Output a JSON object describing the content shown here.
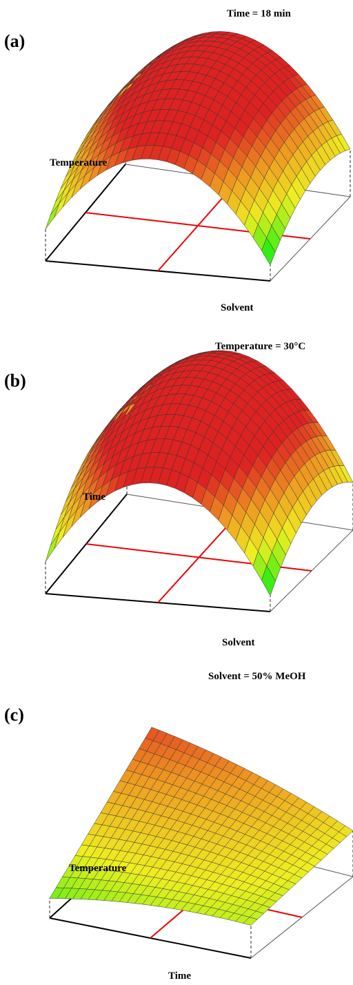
{
  "chart_data": [
    {
      "type": "surface",
      "panel_label": "(a)",
      "condition": "Time = 18 min",
      "axis_labels": [
        "Temperature",
        "Solvent"
      ],
      "surface": {
        "rows": 16,
        "cols": 26,
        "z": {
          "corners": {
            "temp_low_solvent_low": 0.2,
            "temp_high_solvent_low": 0.45,
            "temp_high_solvent_high": 0.3,
            "temp_low_solvent_high": 0.1
          },
          "curvature_temp": 0.15,
          "curvature_solvent": 0.55
        },
        "color_value_range": [
          0.15,
          0.75
        ]
      },
      "floor_reference_lines": "red",
      "colormap": [
        "#22ee11",
        "#eeee22",
        "#ee9922",
        "#dd2222"
      ]
    },
    {
      "type": "surface",
      "panel_label": "(b)",
      "condition": "Temperature = 30°C",
      "axis_labels": [
        "Time",
        "Solvent"
      ],
      "surface": {
        "rows": 16,
        "cols": 26,
        "z": {
          "corners": {
            "time_low_solvent_low": 0.2,
            "time_high_solvent_low": 0.5,
            "time_high_solvent_high": 0.3,
            "time_low_solvent_high": 0.1
          },
          "curvature_time": 0.2,
          "curvature_solvent": 0.6
        },
        "color_value_range": [
          0.15,
          0.75
        ]
      },
      "floor_reference_lines": "red",
      "colormap": [
        "#22ee11",
        "#eeee22",
        "#ee9922",
        "#dd2222"
      ]
    },
    {
      "type": "surface",
      "panel_label": "(c)",
      "condition": "Solvent = 50% MeOH",
      "axis_labels": [
        "Temperature",
        "Time"
      ],
      "surface": {
        "rows": 16,
        "cols": 26,
        "z": {
          "corners": {
            "temp_low_time_low": 0.15,
            "temp_high_time_low": 0.75,
            "temp_high_time_high": 0.35,
            "temp_low_time_high": 0.25
          },
          "curvature_temp": 0.0,
          "curvature_time": 0.05
        },
        "color_value_range": [
          0.05,
          0.85
        ]
      },
      "floor_reference_lines": "red",
      "colormap": [
        "#22ee11",
        "#eeee22",
        "#ee9922",
        "#dd2222"
      ]
    }
  ]
}
